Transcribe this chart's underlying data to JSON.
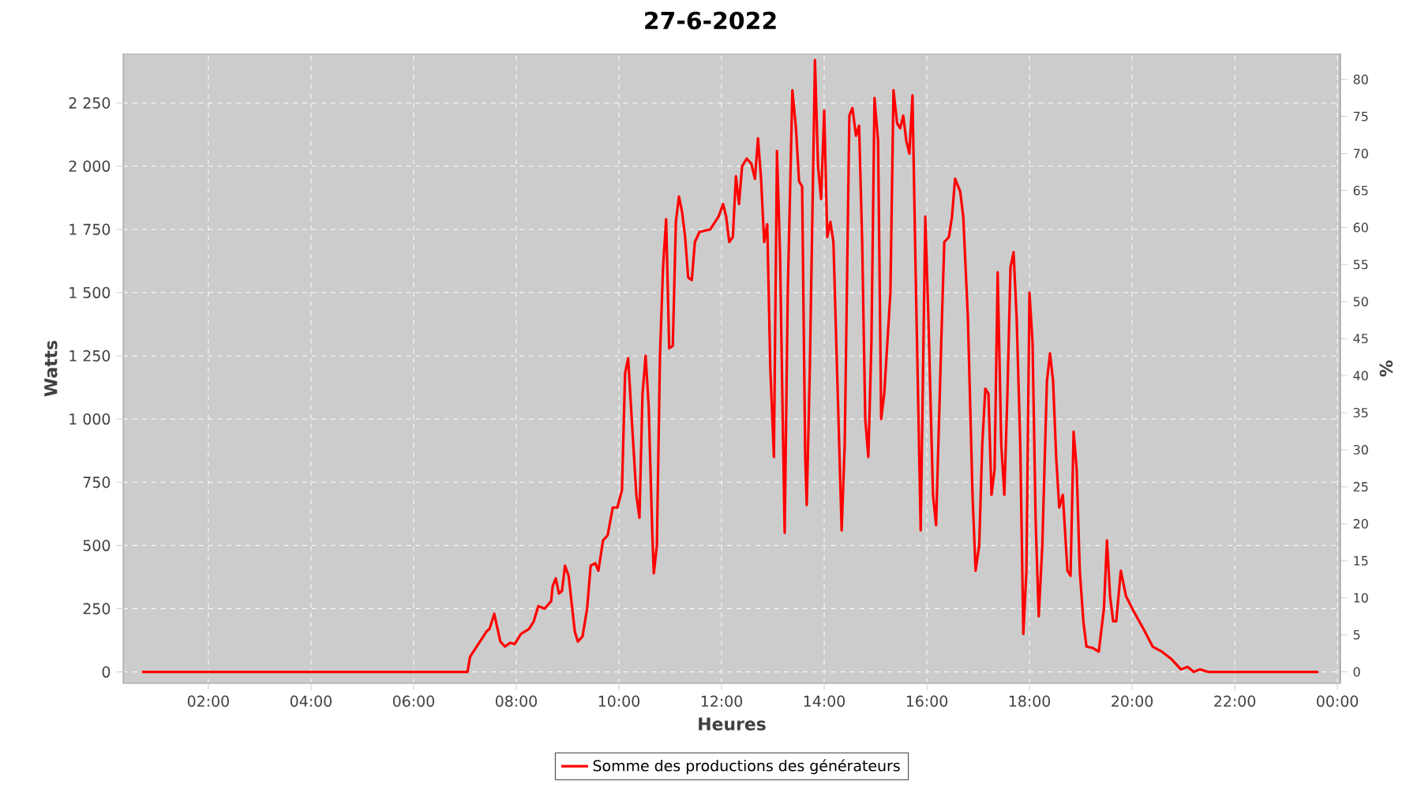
{
  "chart_data": {
    "type": "line",
    "title": "27-6-2022",
    "xlabel": "Heures",
    "ylabel": "Watts",
    "y2label": "%",
    "xlim": [
      0.34,
      24.06
    ],
    "xticks": [
      {
        "value": 2,
        "label": "02:00"
      },
      {
        "value": 4,
        "label": "04:00"
      },
      {
        "value": 6,
        "label": "06:00"
      },
      {
        "value": 8,
        "label": "08:00"
      },
      {
        "value": 10,
        "label": "10:00"
      },
      {
        "value": 12,
        "label": "12:00"
      },
      {
        "value": 14,
        "label": "14:00"
      },
      {
        "value": 16,
        "label": "16:00"
      },
      {
        "value": 18,
        "label": "18:00"
      },
      {
        "value": 20,
        "label": "20:00"
      },
      {
        "value": 22,
        "label": "22:00"
      },
      {
        "value": 24,
        "label": "00:00"
      }
    ],
    "ylim": [
      -45,
      2445
    ],
    "yticks": [
      0,
      250,
      500,
      750,
      {
        "value": 1000,
        "label": "1 000"
      },
      {
        "value": 1250,
        "label": "1 250"
      },
      {
        "value": 1500,
        "label": "1 500"
      },
      {
        "value": 1750,
        "label": "1 750"
      },
      {
        "value": 2000,
        "label": "2 000"
      },
      {
        "value": 2250,
        "label": "2 250"
      }
    ],
    "y2lim": [
      -1.54,
      83.48
    ],
    "y2ticks": [
      0,
      5,
      10,
      15,
      20,
      25,
      30,
      35,
      40,
      45,
      50,
      55,
      60,
      65,
      70,
      75,
      80
    ],
    "grid": true,
    "legend": "bottom",
    "line_style": "solid",
    "series": [
      {
        "name": "Somme des productions des  générateurs",
        "color": "#ff0000",
        "x": [
          0.71,
          6.86,
          7.05,
          7.1,
          7.26,
          7.42,
          7.48,
          7.57,
          7.69,
          7.78,
          7.88,
          7.97,
          8.09,
          8.25,
          8.34,
          8.43,
          8.55,
          8.68,
          8.71,
          8.77,
          8.83,
          8.89,
          8.95,
          9.02,
          9.14,
          9.2,
          9.29,
          9.38,
          9.45,
          9.54,
          9.6,
          9.69,
          9.78,
          9.88,
          9.97,
          10.06,
          10.12,
          10.18,
          10.25,
          10.34,
          10.4,
          10.46,
          10.52,
          10.58,
          10.65,
          10.68,
          10.74,
          10.8,
          10.86,
          10.92,
          10.98,
          11.05,
          11.11,
          11.17,
          11.23,
          11.29,
          11.35,
          11.42,
          11.48,
          11.57,
          11.78,
          11.94,
          12.03,
          12.09,
          12.15,
          12.22,
          12.28,
          12.34,
          12.4,
          12.49,
          12.58,
          12.65,
          12.71,
          12.77,
          12.83,
          12.89,
          12.95,
          13.02,
          13.08,
          13.14,
          13.2,
          13.23,
          13.29,
          13.38,
          13.45,
          13.51,
          13.57,
          13.63,
          13.66,
          13.72,
          13.82,
          13.88,
          13.94,
          14.0,
          14.06,
          14.12,
          14.18,
          14.25,
          14.34,
          14.4,
          14.49,
          14.55,
          14.62,
          14.68,
          14.74,
          14.8,
          14.86,
          14.92,
          14.98,
          15.05,
          15.11,
          15.17,
          15.23,
          15.29,
          15.35,
          15.42,
          15.48,
          15.54,
          15.6,
          15.66,
          15.72,
          15.78,
          15.88,
          15.97,
          16.03,
          16.12,
          16.18,
          16.28,
          16.34,
          16.43,
          16.49,
          16.55,
          16.65,
          16.71,
          16.8,
          16.89,
          16.95,
          17.02,
          17.08,
          17.14,
          17.2,
          17.26,
          17.32,
          17.38,
          17.45,
          17.51,
          17.57,
          17.63,
          17.69,
          17.75,
          17.82,
          17.88,
          17.94,
          18.0,
          18.06,
          18.12,
          18.18,
          18.25,
          18.34,
          18.4,
          18.46,
          18.52,
          18.58,
          18.65,
          18.74,
          18.8,
          18.86,
          18.92,
          18.98,
          19.05,
          19.11,
          19.23,
          19.35,
          19.45,
          19.51,
          19.57,
          19.63,
          19.69,
          19.78,
          19.88,
          20.03,
          20.22,
          20.4,
          20.58,
          20.77,
          20.95,
          21.08,
          21.2,
          21.32,
          21.48,
          23.63
        ],
        "values": [
          0,
          0,
          0,
          60,
          110,
          160,
          170,
          230,
          120,
          100,
          115,
          110,
          150,
          170,
          200,
          260,
          250,
          280,
          340,
          370,
          310,
          320,
          420,
          380,
          160,
          120,
          140,
          250,
          420,
          430,
          400,
          520,
          540,
          650,
          650,
          720,
          1180,
          1240,
          1000,
          700,
          610,
          1100,
          1250,
          1050,
          550,
          390,
          500,
          1250,
          1600,
          1790,
          1280,
          1290,
          1780,
          1880,
          1820,
          1720,
          1560,
          1550,
          1700,
          1740,
          1750,
          1800,
          1850,
          1800,
          1700,
          1720,
          1960,
          1850,
          2000,
          2030,
          2010,
          1950,
          2110,
          1950,
          1700,
          1770,
          1200,
          850,
          2060,
          1650,
          900,
          550,
          1500,
          2300,
          2150,
          1940,
          1920,
          850,
          660,
          1200,
          2420,
          2000,
          1870,
          2220,
          1720,
          1780,
          1700,
          1200,
          560,
          900,
          2200,
          2230,
          2120,
          2160,
          1700,
          1000,
          850,
          1300,
          2270,
          2100,
          1000,
          1100,
          1300,
          1500,
          2300,
          2170,
          2150,
          2200,
          2100,
          2050,
          2280,
          1600,
          560,
          1800,
          1400,
          700,
          580,
          1300,
          1700,
          1720,
          1800,
          1950,
          1900,
          1800,
          1400,
          700,
          400,
          500,
          900,
          1120,
          1100,
          700,
          800,
          1580,
          900,
          700,
          1100,
          1600,
          1660,
          1400,
          900,
          150,
          400,
          1500,
          1300,
          600,
          220,
          500,
          1150,
          1260,
          1150,
          850,
          650,
          700,
          400,
          380,
          950,
          800,
          400,
          200,
          100,
          95,
          80,
          250,
          520,
          300,
          200,
          200,
          400,
          300,
          240,
          170,
          100,
          80,
          50,
          10,
          20,
          0,
          10,
          0,
          0
        ]
      }
    ]
  }
}
